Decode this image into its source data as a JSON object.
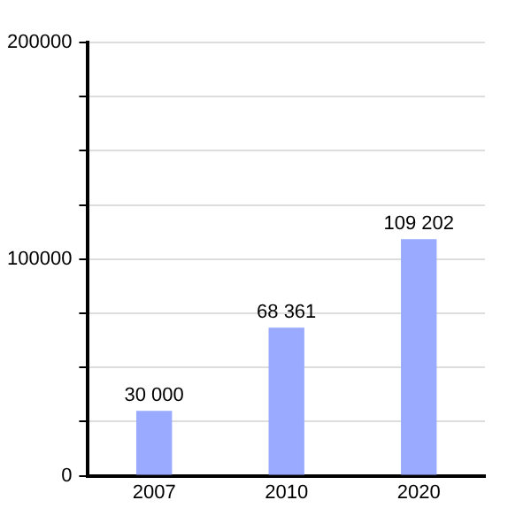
{
  "chart_data": {
    "type": "bar",
    "categories": [
      "2007",
      "2010",
      "2020"
    ],
    "values": [
      30000,
      68361,
      109202
    ],
    "value_labels": [
      "30 000",
      "68 361",
      "109 202"
    ],
    "color": "#99aaff",
    "ylim": [
      0,
      200000
    ],
    "yticks": [
      0,
      {
        "value": 25000,
        "label": null
      },
      {
        "value": 50000,
        "label": null
      },
      {
        "value": 75000,
        "label": null
      },
      100000,
      {
        "value": 125000,
        "label": null
      },
      {
        "value": 150000,
        "label": null
      },
      {
        "value": 175000,
        "label": null
      },
      200000
    ],
    "grid": "y",
    "legend": false
  }
}
